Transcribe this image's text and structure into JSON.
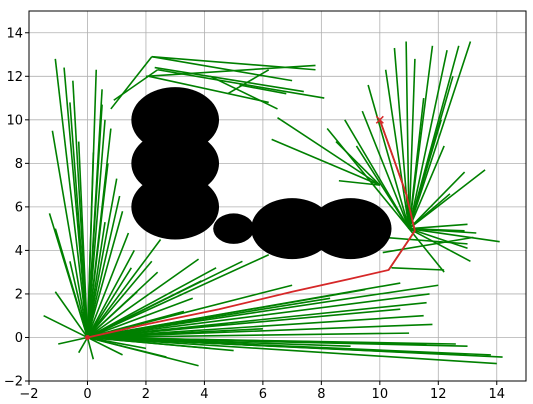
{
  "chart_data": {
    "type": "line",
    "title": "",
    "xlabel": "",
    "ylabel": "",
    "xlim": [
      -2,
      15
    ],
    "ylim": [
      -2,
      15
    ],
    "xticks": [
      -2,
      0,
      2,
      4,
      6,
      8,
      10,
      12,
      14
    ],
    "yticks": [
      -2,
      0,
      2,
      4,
      6,
      8,
      10,
      12,
      14
    ],
    "xtick_labels": [
      "−2",
      "0",
      "2",
      "4",
      "6",
      "8",
      "10",
      "12",
      "14"
    ],
    "ytick_labels": [
      "−2",
      "0",
      "2",
      "4",
      "6",
      "8",
      "10",
      "12",
      "14"
    ],
    "grid": true,
    "colors": {
      "tree": "#008000",
      "path": "#d62728",
      "obstacle": "#000000",
      "goal": "#d62728"
    },
    "start": [
      0,
      0
    ],
    "goal": [
      10,
      10
    ],
    "obstacles": [
      {
        "x": 3,
        "y": 10,
        "r": 1.5
      },
      {
        "x": 3,
        "y": 8,
        "r": 1.5
      },
      {
        "x": 3,
        "y": 6,
        "r": 1.5
      },
      {
        "x": 5,
        "y": 5,
        "r": 0.7
      },
      {
        "x": 7,
        "y": 5,
        "r": 1.4
      },
      {
        "x": 9,
        "y": 5,
        "r": 1.4
      }
    ],
    "tree_edges": [
      [
        0,
        0,
        -1.1,
        12.8
      ],
      [
        0,
        0,
        -0.8,
        12.4
      ],
      [
        0,
        0,
        -0.5,
        11.8
      ],
      [
        0,
        0,
        0.3,
        12.3
      ],
      [
        0,
        0,
        0.5,
        11.4
      ],
      [
        0,
        0,
        0.5,
        10.7
      ],
      [
        0,
        0,
        0.6,
        10.0
      ],
      [
        0,
        0,
        0.8,
        9.6
      ],
      [
        0,
        0,
        -0.6,
        10.8
      ],
      [
        0,
        0,
        -1.2,
        9.5
      ],
      [
        0,
        0,
        -0.3,
        9.0
      ],
      [
        0,
        0,
        0.2,
        8.5
      ],
      [
        0,
        0,
        0.7,
        8.0
      ],
      [
        0,
        0,
        1.0,
        7.3
      ],
      [
        0,
        0,
        1.1,
        6.5
      ],
      [
        0,
        0,
        1.2,
        5.8
      ],
      [
        0,
        0,
        -1.3,
        5.7
      ],
      [
        0,
        0,
        -1.1,
        5.0
      ],
      [
        0,
        0,
        0.6,
        5.3
      ],
      [
        0,
        0,
        1.4,
        4.8
      ],
      [
        0,
        0,
        1.6,
        4.0
      ],
      [
        0,
        0,
        -0.6,
        3.5
      ],
      [
        0,
        0,
        -1.1,
        2.1
      ],
      [
        0,
        0,
        -1.5,
        1.0
      ],
      [
        0,
        0,
        -1.0,
        -0.3
      ],
      [
        0,
        0,
        -0.3,
        -0.7
      ],
      [
        0,
        0,
        0.2,
        -1.0
      ],
      [
        0,
        0,
        1.5,
        3.2
      ],
      [
        0,
        0,
        2.2,
        3.5
      ],
      [
        0,
        0,
        2.5,
        4.5
      ],
      [
        0,
        0,
        2.4,
        3.0
      ],
      [
        0,
        0,
        3.8,
        3.6
      ],
      [
        0,
        0,
        3.9,
        2.6
      ],
      [
        0,
        0,
        3.6,
        1.8
      ],
      [
        0,
        0,
        4.4,
        3.2
      ],
      [
        0,
        0,
        5.3,
        3.5
      ],
      [
        0,
        0,
        6.2,
        3.8
      ],
      [
        0,
        0,
        7.0,
        2.4
      ],
      [
        0,
        0,
        8.3,
        1.8
      ],
      [
        0,
        0,
        9.5,
        2.2
      ],
      [
        0,
        0,
        10.7,
        2.5
      ],
      [
        0,
        0,
        11.7,
        2.0
      ],
      [
        0,
        0,
        12.0,
        2.4
      ],
      [
        0,
        0,
        11.6,
        1.6
      ],
      [
        0,
        0,
        10.7,
        1.3
      ],
      [
        0,
        0,
        11.5,
        1.0
      ],
      [
        0,
        0,
        11.8,
        0.6
      ],
      [
        0,
        0,
        11.0,
        0.2
      ],
      [
        0,
        0,
        11.6,
        -0.3
      ],
      [
        0,
        0,
        12.6,
        -0.3
      ],
      [
        0,
        0,
        13.0,
        -0.4
      ],
      [
        0,
        0,
        13.8,
        -0.8
      ],
      [
        0,
        0,
        14.2,
        -0.9
      ],
      [
        0,
        0,
        14.0,
        -1.2
      ],
      [
        0,
        0,
        12.8,
        -0.8
      ],
      [
        0,
        0,
        10.3,
        -0.3
      ],
      [
        0,
        0,
        9.0,
        -0.4
      ],
      [
        0,
        0,
        7.8,
        -0.2
      ],
      [
        0,
        0,
        6.4,
        -0.4
      ],
      [
        0,
        0,
        5.0,
        -0.6
      ],
      [
        0,
        0,
        4.2,
        -0.5
      ],
      [
        0,
        0,
        3.8,
        -1.3
      ],
      [
        0,
        0,
        2.7,
        -0.9
      ],
      [
        0,
        0,
        2.0,
        -0.5
      ],
      [
        0,
        0,
        1.2,
        -0.8
      ],
      [
        0,
        0,
        4.8,
        0.6
      ],
      [
        0,
        0,
        6.0,
        0.4
      ],
      [
        0,
        0,
        3.3,
        1.2
      ],
      [
        0,
        0,
        2.7,
        1.8
      ],
      [
        0,
        0,
        1.7,
        2.1
      ],
      [
        0.8,
        10.5,
        2.2,
        12.9
      ],
      [
        0.9,
        10.9,
        2.4,
        12.3
      ],
      [
        2.2,
        12.9,
        7.8,
        12.3
      ],
      [
        2.2,
        12.9,
        7.0,
        11.8
      ],
      [
        2.0,
        12.0,
        7.8,
        12.5
      ],
      [
        2.3,
        12.4,
        7.4,
        11.3
      ],
      [
        2.1,
        12.0,
        6.2,
        10.8
      ],
      [
        2.4,
        12.3,
        8.1,
        11.0
      ],
      [
        4.2,
        12.0,
        6.5,
        10.5
      ],
      [
        5.2,
        11.6,
        6.8,
        11.2
      ],
      [
        4.8,
        11.2,
        6.2,
        12.3
      ],
      [
        10.3,
        3.1,
        11.2,
        4.9
      ],
      [
        11.2,
        4.9,
        10.9,
        6.6
      ],
      [
        10.9,
        6.6,
        10.0,
        10.0
      ],
      [
        11.0,
        5.0,
        10.2,
        12.3
      ],
      [
        11.0,
        5.0,
        10.5,
        13.3
      ],
      [
        11.0,
        5.0,
        10.9,
        13.6
      ],
      [
        11.0,
        5.0,
        11.2,
        12.8
      ],
      [
        11.0,
        5.0,
        11.8,
        13.4
      ],
      [
        11.0,
        5.0,
        12.3,
        13.2
      ],
      [
        11.0,
        5.0,
        12.7,
        13.4
      ],
      [
        11.0,
        5.0,
        13.1,
        13.6
      ],
      [
        11.0,
        5.0,
        12.5,
        12.0
      ],
      [
        11.0,
        5.0,
        11.5,
        11.0
      ],
      [
        11.0,
        5.0,
        9.6,
        11.6
      ],
      [
        11.0,
        5.0,
        9.4,
        10.4
      ],
      [
        11.0,
        5.0,
        8.8,
        10.0
      ],
      [
        11.0,
        5.0,
        8.2,
        9.6
      ],
      [
        11.0,
        5.0,
        9.2,
        8.8
      ],
      [
        11.0,
        5.0,
        12.1,
        10.0
      ],
      [
        11.0,
        5.0,
        12.2,
        8.8
      ],
      [
        11.0,
        5.0,
        12.9,
        7.6
      ],
      [
        11.0,
        5.0,
        13.6,
        7.7
      ],
      [
        11.0,
        5.0,
        12.4,
        6.6
      ],
      [
        11.0,
        5.0,
        13.0,
        5.2
      ],
      [
        11.0,
        5.0,
        12.9,
        4.9
      ],
      [
        11.0,
        5.0,
        13.3,
        4.8
      ],
      [
        11.0,
        5.0,
        14.1,
        4.4
      ],
      [
        11.0,
        5.0,
        13.1,
        3.5
      ],
      [
        11.0,
        5.0,
        12.2,
        3.0
      ],
      [
        11.0,
        5.0,
        13.0,
        4.1
      ],
      [
        10.1,
        4.6,
        13.0,
        4.3
      ],
      [
        10.0,
        7.0,
        6.5,
        10.1
      ],
      [
        10.0,
        7.0,
        6.3,
        9.1
      ],
      [
        10.0,
        7.0,
        8.5,
        9.0
      ],
      [
        10.0,
        7.0,
        8.6,
        7.2
      ],
      [
        10.1,
        3.9,
        13.2,
        4.6
      ],
      [
        10.4,
        3.2,
        12.2,
        3.1
      ]
    ],
    "path": [
      [
        0,
        0
      ],
      [
        2,
        0.6
      ],
      [
        4.5,
        1.3
      ],
      [
        7,
        2.1
      ],
      [
        9,
        2.7
      ],
      [
        10.3,
        3.1
      ],
      [
        11.2,
        4.9
      ],
      [
        10.9,
        6.6
      ],
      [
        10,
        10
      ]
    ]
  }
}
